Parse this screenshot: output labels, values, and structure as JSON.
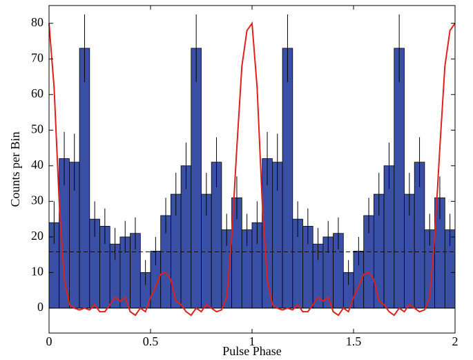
{
  "chart_data": {
    "type": "histogram",
    "xlabel": "Pulse Phase",
    "ylabel": "Counts per Bin",
    "bins": [
      0,
      0.05,
      0.1,
      0.15,
      0.2,
      0.25,
      0.3,
      0.35,
      0.4,
      0.45,
      0.5,
      0.55,
      0.6,
      0.65,
      0.7,
      0.75,
      0.8,
      0.85,
      0.9,
      0.95,
      1,
      1.05,
      1.1,
      1.15,
      1.2,
      1.25,
      1.3,
      1.35,
      1.4,
      1.45,
      1.5,
      1.55,
      1.6,
      1.65,
      1.7,
      1.75,
      1.8,
      1.85,
      1.9,
      1.95,
      2
    ],
    "values": [
      24,
      42,
      41,
      73,
      25,
      23,
      18,
      20,
      21,
      10,
      16,
      26,
      32,
      40,
      73,
      32,
      41,
      22,
      31,
      22,
      24,
      42,
      41,
      73,
      25,
      23,
      18,
      20,
      21,
      10,
      16,
      26,
      32,
      40,
      73,
      32,
      41,
      22,
      31,
      22
    ],
    "errors": [
      6,
      7.5,
      8,
      9.5,
      5,
      5,
      4.5,
      4.5,
      4.5,
      3.5,
      4,
      5,
      6,
      6.5,
      9.5,
      6,
      7,
      4.5,
      6,
      4.5,
      6,
      7.5,
      8,
      9.5,
      5,
      5,
      4.5,
      4.5,
      4.5,
      3.5,
      4,
      5,
      6,
      6.5,
      9.5,
      6,
      7,
      4.5,
      6,
      4.5
    ],
    "color": "#3a50a6",
    "error_color": "#000000",
    "mean_level": 15.8,
    "model": {
      "color": "#e0201b",
      "x": [
        0,
        0.025,
        0.05,
        0.075,
        0.1,
        0.125,
        0.15,
        0.175,
        0.2,
        0.225,
        0.25,
        0.275,
        0.3,
        0.325,
        0.35,
        0.375,
        0.4,
        0.425,
        0.45,
        0.475,
        0.5,
        0.525,
        0.55,
        0.575,
        0.6,
        0.625,
        0.65,
        0.675,
        0.7,
        0.725,
        0.75,
        0.775,
        0.8,
        0.825,
        0.85,
        0.875,
        0.9,
        0.925,
        0.95,
        0.975,
        1,
        1.025,
        1.05,
        1.075,
        1.1,
        1.125,
        1.15,
        1.175,
        1.2,
        1.225,
        1.25,
        1.275,
        1.3,
        1.325,
        1.35,
        1.375,
        1.4,
        1.425,
        1.45,
        1.475,
        1.5,
        1.525,
        1.55,
        1.575,
        1.6,
        1.625,
        1.65,
        1.675,
        1.7,
        1.725,
        1.75,
        1.775,
        1.8,
        1.825,
        1.85,
        1.875,
        1.9,
        1.925,
        1.95,
        1.975,
        2
      ],
      "y": [
        80,
        62,
        30,
        8,
        1,
        0,
        -0.5,
        0,
        -0.5,
        1,
        -1,
        -1,
        1,
        3,
        2,
        3,
        -1,
        -2,
        0,
        -1,
        3,
        6,
        9.5,
        10,
        8,
        2,
        1,
        -1,
        -2,
        0,
        -1,
        1,
        0,
        -1,
        -0.5,
        3,
        20,
        45,
        68,
        78,
        80,
        62,
        30,
        8,
        1,
        0,
        -0.5,
        0,
        -0.5,
        1,
        -1,
        -1,
        1,
        3,
        2,
        3,
        -1,
        -2,
        0,
        -1,
        3,
        6,
        9.5,
        10,
        8,
        2,
        1,
        -1,
        -2,
        0,
        -1,
        1,
        0,
        -1,
        -0.5,
        3,
        20,
        45,
        68,
        78,
        80
      ]
    },
    "xlim": [
      0,
      2
    ],
    "ylim": [
      -7,
      85
    ],
    "xticks": [
      0,
      0.5,
      1,
      1.5,
      2
    ],
    "yticks": [
      0,
      10,
      20,
      30,
      40,
      50,
      60,
      70,
      80
    ]
  }
}
